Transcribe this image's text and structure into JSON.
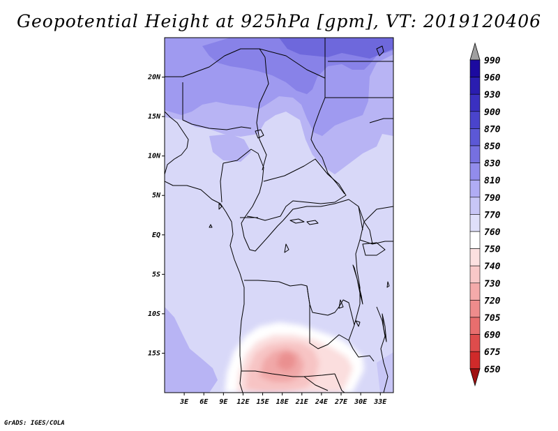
{
  "title": "Geopotential Height at 925hPa [gpm], VT: 2019120406",
  "credit": "GrADS: IGES/COLA",
  "map": {
    "lon_range": [
      0,
      35
    ],
    "lat_range": [
      -20,
      25
    ],
    "lat_ticks": [
      {
        "value": 20,
        "label": "20N"
      },
      {
        "value": 15,
        "label": "15N"
      },
      {
        "value": 10,
        "label": "10N"
      },
      {
        "value": 5,
        "label": "5N"
      },
      {
        "value": 0,
        "label": "EQ"
      },
      {
        "value": -5,
        "label": "5S"
      },
      {
        "value": -10,
        "label": "10S"
      },
      {
        "value": -15,
        "label": "15S"
      }
    ],
    "lon_ticks": [
      {
        "value": 3,
        "label": "3E"
      },
      {
        "value": 6,
        "label": "6E"
      },
      {
        "value": 9,
        "label": "9E"
      },
      {
        "value": 12,
        "label": "12E"
      },
      {
        "value": 15,
        "label": "15E"
      },
      {
        "value": 18,
        "label": "18E"
      },
      {
        "value": 21,
        "label": "21E"
      },
      {
        "value": 24,
        "label": "24E"
      },
      {
        "value": 27,
        "label": "27E"
      },
      {
        "value": 30,
        "label": "30E"
      },
      {
        "value": 33,
        "label": "33E"
      }
    ],
    "background_color": "#d8d8f8"
  },
  "colorbar": {
    "levels": [
      {
        "label": "990",
        "color": "#1c0aa0"
      },
      {
        "label": "960",
        "color": "#2a1db0"
      },
      {
        "label": "930",
        "color": "#3a30c0"
      },
      {
        "label": "900",
        "color": "#4a44cc"
      },
      {
        "label": "870",
        "color": "#5c58d6"
      },
      {
        "label": "850",
        "color": "#7670e0"
      },
      {
        "label": "830",
        "color": "#928cec"
      },
      {
        "label": "810",
        "color": "#b0acf4"
      },
      {
        "label": "790",
        "color": "#c8c6f6"
      },
      {
        "label": "770",
        "color": "#e0e0fa"
      },
      {
        "label": "760",
        "color": "#ffffff"
      },
      {
        "label": "750",
        "color": "#fce0e0"
      },
      {
        "label": "740",
        "color": "#f8c8c8"
      },
      {
        "label": "730",
        "color": "#f4aaaa"
      },
      {
        "label": "720",
        "color": "#ee8c8c"
      },
      {
        "label": "705",
        "color": "#e86e6e"
      },
      {
        "label": "690",
        "color": "#de4c4c"
      },
      {
        "label": "675",
        "color": "#d02a2a"
      },
      {
        "label": "650",
        "color": "#b41414"
      }
    ],
    "top_arrow_color": "#a0a0a0",
    "bottom_arrow_color": "#a01010"
  }
}
